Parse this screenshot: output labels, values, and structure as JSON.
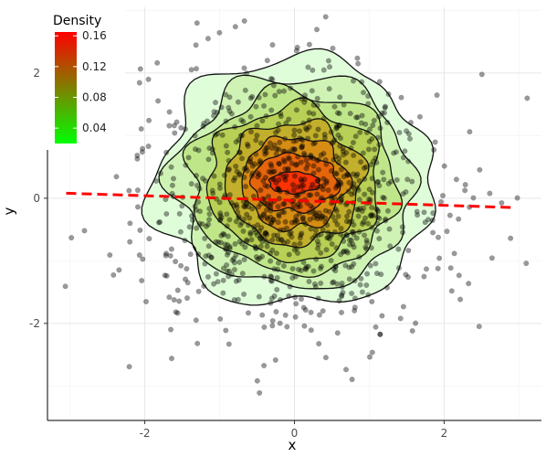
{
  "chart_data": {
    "type": "scatter",
    "title": "",
    "xlabel": "x",
    "ylabel": "y",
    "xlim": [
      -3.3,
      3.3
    ],
    "ylim": [
      -3.55,
      3.05
    ],
    "x_ticks": [
      -2,
      0,
      2
    ],
    "x_tick_labels": [
      "-2",
      "0",
      "2"
    ],
    "y_ticks": [
      -2,
      0,
      2
    ],
    "y_tick_labels": [
      "-2",
      "0",
      "2"
    ],
    "grid": true,
    "legend": {
      "title": "Density",
      "position": "top-left",
      "gradient": [
        "#00ff00",
        "#ff0000"
      ],
      "range": [
        0.02,
        0.165
      ],
      "ticks": [
        0.04,
        0.08,
        0.12,
        0.16
      ],
      "tick_labels": [
        "0.04",
        "0.08",
        "0.12",
        "0.16"
      ]
    },
    "point_color": "#000000",
    "point_opacity": 0.4,
    "n_points": 1000,
    "density_contours": [
      {
        "level": 0.02,
        "rx": 1.85,
        "ry": 2.0,
        "fill": "#ddfdd6"
      },
      {
        "level": 0.04,
        "rx": 1.6,
        "ry": 1.7,
        "fill": "#cdf2b0"
      },
      {
        "level": 0.06,
        "rx": 1.38,
        "ry": 1.45,
        "fill": "#bde685"
      },
      {
        "level": 0.08,
        "rx": 1.15,
        "ry": 1.22,
        "fill": "#b6cd4f"
      },
      {
        "level": 0.1,
        "rx": 0.92,
        "ry": 0.98,
        "fill": "#c3ab27"
      },
      {
        "level": 0.12,
        "rx": 0.7,
        "ry": 0.74,
        "fill": "#d88a11"
      },
      {
        "level": 0.14,
        "rx": 0.46,
        "ry": 0.46,
        "fill": "#e8600b"
      },
      {
        "level": 0.16,
        "rx": 0.22,
        "ry": 0.17,
        "fill": "#ff2d04"
      }
    ],
    "density_center": [
      0.0,
      0.25
    ],
    "regression_line": {
      "x": [
        -3.05,
        2.95
      ],
      "y": [
        0.08,
        -0.15
      ],
      "color": "#ff0000",
      "style": "dashed"
    }
  }
}
